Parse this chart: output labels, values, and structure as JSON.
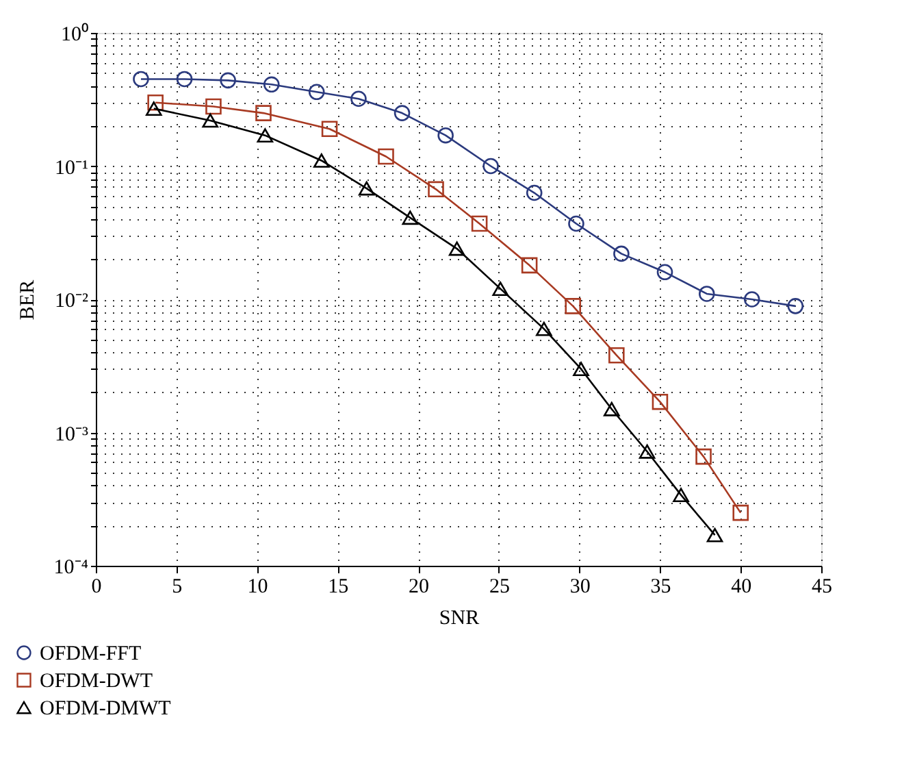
{
  "chart_data": {
    "type": "line",
    "xlabel": "SNR",
    "ylabel": "BER",
    "log": "y",
    "grid": true,
    "legend": "bottom left",
    "line_style": "solid",
    "xlim": [
      0,
      45
    ],
    "xticks": [
      0,
      5,
      10,
      15,
      20,
      25,
      30,
      35,
      40,
      45
    ],
    "ylim": [
      0.0001,
      1
    ],
    "yticks": [
      {
        "value": 0.0001,
        "label": "10⁻⁴"
      },
      {
        "value": 0.0002,
        "label": null
      },
      {
        "value": 0.0003,
        "label": null
      },
      {
        "value": 0.0004,
        "label": null
      },
      {
        "value": 0.0005,
        "label": null
      },
      {
        "value": 0.0006,
        "label": null
      },
      {
        "value": 0.0007,
        "label": null
      },
      {
        "value": 0.0008,
        "label": null
      },
      {
        "value": 0.0009,
        "label": null
      },
      {
        "value": 0.001,
        "label": "10⁻³"
      },
      {
        "value": 0.002,
        "label": null
      },
      {
        "value": 0.003,
        "label": null
      },
      {
        "value": 0.004,
        "label": null
      },
      {
        "value": 0.005,
        "label": null
      },
      {
        "value": 0.006,
        "label": null
      },
      {
        "value": 0.007,
        "label": null
      },
      {
        "value": 0.008,
        "label": null
      },
      {
        "value": 0.009,
        "label": null
      },
      {
        "value": 0.01,
        "label": "10⁻²"
      },
      {
        "value": 0.02,
        "label": null
      },
      {
        "value": 0.03,
        "label": null
      },
      {
        "value": 0.04,
        "label": null
      },
      {
        "value": 0.05,
        "label": null
      },
      {
        "value": 0.06,
        "label": null
      },
      {
        "value": 0.07,
        "label": null
      },
      {
        "value": 0.08,
        "label": null
      },
      {
        "value": 0.09,
        "label": null
      },
      {
        "value": 0.1,
        "label": "10⁻¹"
      },
      {
        "value": 0.2,
        "label": null
      },
      {
        "value": 0.3,
        "label": null
      },
      {
        "value": 0.4,
        "label": null
      },
      {
        "value": 0.5,
        "label": null
      },
      {
        "value": 0.6,
        "label": null
      },
      {
        "value": 0.7,
        "label": null
      },
      {
        "value": 0.8,
        "label": null
      },
      {
        "value": 0.9,
        "label": null
      },
      {
        "value": 1,
        "label": "10⁰"
      }
    ],
    "series": [
      {
        "name": "OFDM-FFT",
        "color": "#2b3a7e",
        "marker": "circle",
        "x": [
          2.8,
          5.5,
          8.2,
          10.9,
          13.7,
          16.3,
          19.0,
          21.7,
          24.5,
          27.2,
          29.8,
          32.6,
          35.3,
          37.9,
          40.7,
          43.4
        ],
        "values": [
          0.45,
          0.45,
          0.44,
          0.41,
          0.36,
          0.32,
          0.25,
          0.17,
          0.1,
          0.063,
          0.037,
          0.022,
          0.016,
          0.011,
          0.01,
          0.0089
        ]
      },
      {
        "name": "OFDM-DWT",
        "color": "#a83a22",
        "marker": "square",
        "x": [
          3.7,
          7.3,
          10.4,
          14.5,
          18.0,
          21.1,
          23.8,
          26.9,
          29.6,
          32.3,
          35.0,
          37.7,
          40.0
        ],
        "values": [
          0.3,
          0.28,
          0.25,
          0.19,
          0.118,
          0.067,
          0.037,
          0.018,
          0.0089,
          0.0038,
          0.0017,
          0.00066,
          0.00025
        ]
      },
      {
        "name": "OFDM-DMWT",
        "color": "#000000",
        "marker": "triangle",
        "x": [
          3.6,
          7.1,
          10.5,
          14.0,
          16.8,
          19.5,
          22.4,
          25.1,
          27.8,
          30.1,
          32.0,
          34.2,
          36.3,
          38.4
        ],
        "values": [
          0.27,
          0.22,
          0.17,
          0.11,
          0.068,
          0.041,
          0.024,
          0.012,
          0.006,
          0.003,
          0.0015,
          0.00072,
          0.00034,
          0.00017
        ]
      }
    ]
  }
}
